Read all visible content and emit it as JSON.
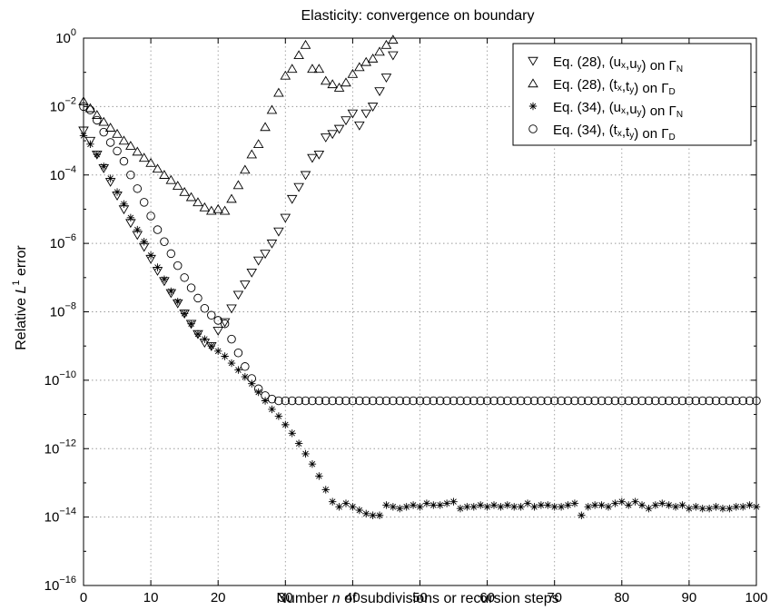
{
  "chart_data": {
    "type": "scatter",
    "title": "Elasticity: convergence on boundary",
    "xlabel": "Number n of subdivisions or recursion steps",
    "ylabel": "Relative L^1 error",
    "xlim": [
      0,
      100
    ],
    "ylim_exp": [
      -16,
      0
    ],
    "yscale": "log",
    "grid": true,
    "legend_position": "top-right",
    "x_ticks": [
      "0",
      "10",
      "20",
      "30",
      "40",
      "50",
      "60",
      "70",
      "80",
      "90",
      "100"
    ],
    "y_tick_exponents": [
      "0",
      "-2",
      "-4",
      "-6",
      "-8",
      "-10",
      "-12",
      "-14",
      "-16"
    ],
    "series": [
      {
        "name": "Eq. (28), (u_x,u_y) on Γ_N",
        "marker": "triangle-down",
        "x": [
          0,
          1,
          2,
          3,
          4,
          5,
          6,
          7,
          8,
          9,
          10,
          11,
          12,
          13,
          14,
          15,
          16,
          17,
          18,
          19,
          20,
          21,
          22,
          23,
          24,
          25,
          26,
          27,
          28,
          29,
          30,
          31,
          32,
          33,
          34,
          35,
          36,
          37,
          38,
          39,
          40,
          41,
          42,
          43,
          44,
          45,
          46
        ],
        "log10y": [
          -2.7,
          -3.0,
          -3.4,
          -3.8,
          -4.2,
          -4.6,
          -5.0,
          -5.4,
          -5.75,
          -6.1,
          -6.45,
          -6.8,
          -7.1,
          -7.45,
          -7.75,
          -8.05,
          -8.35,
          -8.65,
          -8.9,
          -9.0,
          -8.55,
          -8.3,
          -7.9,
          -7.5,
          -7.2,
          -6.85,
          -6.5,
          -6.3,
          -6.0,
          -5.65,
          -5.25,
          -4.7,
          -4.35,
          -4.0,
          -3.5,
          -3.4,
          -2.9,
          -2.8,
          -2.65,
          -2.4,
          -2.2,
          -2.55,
          -2.2,
          -2.0,
          -1.55,
          -1.15,
          -0.5
        ]
      },
      {
        "name": "Eq. (28), (t_x,t_y) on Γ_D",
        "marker": "triangle-up",
        "x": [
          0,
          1,
          2,
          3,
          4,
          5,
          6,
          7,
          8,
          9,
          10,
          11,
          12,
          13,
          14,
          15,
          16,
          17,
          18,
          19,
          20,
          21,
          22,
          23,
          24,
          25,
          26,
          27,
          28,
          29,
          30,
          31,
          32,
          33,
          34,
          35,
          36,
          37,
          38,
          39,
          40,
          41,
          42,
          43,
          44,
          45,
          46
        ],
        "log10y": [
          -1.85,
          -2.05,
          -2.25,
          -2.45,
          -2.62,
          -2.8,
          -3.0,
          -3.15,
          -3.32,
          -3.5,
          -3.65,
          -3.82,
          -4.0,
          -4.15,
          -4.32,
          -4.5,
          -4.65,
          -4.8,
          -4.95,
          -5.05,
          -5.0,
          -5.05,
          -4.7,
          -4.3,
          -3.85,
          -3.4,
          -3.1,
          -2.6,
          -2.1,
          -1.6,
          -1.1,
          -0.9,
          -0.5,
          -0.2,
          -0.9,
          -0.9,
          -1.25,
          -1.35,
          -1.45,
          -1.3,
          -1.05,
          -0.85,
          -0.7,
          -0.6,
          -0.4,
          -0.2,
          -0.05
        ]
      },
      {
        "name": "Eq. (34), (u_x,u_y) on Γ_N",
        "marker": "asterisk",
        "x": [
          0,
          1,
          2,
          3,
          4,
          5,
          6,
          7,
          8,
          9,
          10,
          11,
          12,
          13,
          14,
          15,
          16,
          17,
          18,
          19,
          20,
          21,
          22,
          23,
          24,
          25,
          26,
          27,
          28,
          29,
          30,
          31,
          32,
          33,
          34,
          35,
          36,
          37,
          38,
          39,
          40,
          41,
          42,
          43,
          44,
          45,
          46,
          47,
          48,
          49,
          50,
          51,
          52,
          53,
          54,
          55,
          56,
          57,
          58,
          59,
          60,
          61,
          62,
          63,
          64,
          65,
          66,
          67,
          68,
          69,
          70,
          71,
          72,
          73,
          74,
          75,
          76,
          77,
          78,
          79,
          80,
          81,
          82,
          83,
          84,
          85,
          86,
          87,
          88,
          89,
          90,
          91,
          92,
          93,
          94,
          95,
          96,
          97,
          98,
          99,
          100
        ],
        "log10y": [
          -2.85,
          -3.1,
          -3.4,
          -3.75,
          -4.1,
          -4.5,
          -4.85,
          -5.25,
          -5.6,
          -5.95,
          -6.35,
          -6.7,
          -7.05,
          -7.4,
          -7.7,
          -8.05,
          -8.35,
          -8.65,
          -8.8,
          -9.0,
          -9.15,
          -9.3,
          -9.5,
          -9.7,
          -9.9,
          -10.1,
          -10.35,
          -10.6,
          -10.85,
          -11.05,
          -11.3,
          -11.55,
          -11.85,
          -12.15,
          -12.45,
          -12.8,
          -13.2,
          -13.55,
          -13.7,
          -13.6,
          -13.7,
          -13.8,
          -13.9,
          -13.95,
          -13.95,
          -13.65,
          -13.7,
          -13.75,
          -13.7,
          -13.65,
          -13.7,
          -13.6,
          -13.65,
          -13.65,
          -13.6,
          -13.55,
          -13.75,
          -13.7,
          -13.7,
          -13.65,
          -13.7,
          -13.65,
          -13.7,
          -13.65,
          -13.7,
          -13.7,
          -13.6,
          -13.7,
          -13.65,
          -13.65,
          -13.7,
          -13.7,
          -13.65,
          -13.6,
          -13.95,
          -13.7,
          -13.65,
          -13.65,
          -13.7,
          -13.6,
          -13.55,
          -13.65,
          -13.55,
          -13.65,
          -13.75,
          -13.65,
          -13.6,
          -13.65,
          -13.7,
          -13.65,
          -13.75,
          -13.7,
          -13.75,
          -13.75,
          -13.7,
          -13.75,
          -13.75,
          -13.7,
          -13.7,
          -13.65,
          -13.7
        ]
      },
      {
        "name": "Eq. (34), (t_x,t_y) on Γ_D",
        "marker": "circle",
        "x": [
          0,
          1,
          2,
          3,
          4,
          5,
          6,
          7,
          8,
          9,
          10,
          11,
          12,
          13,
          14,
          15,
          16,
          17,
          18,
          19,
          20,
          21,
          22,
          23,
          24,
          25,
          26,
          27,
          28,
          29,
          30,
          31,
          32,
          33,
          34,
          35,
          36,
          37,
          38,
          39,
          40,
          41,
          42,
          43,
          44,
          45,
          46,
          47,
          48,
          49,
          50,
          51,
          52,
          53,
          54,
          55,
          56,
          57,
          58,
          59,
          60,
          61,
          62,
          63,
          64,
          65,
          66,
          67,
          68,
          69,
          70,
          71,
          72,
          73,
          74,
          75,
          76,
          77,
          78,
          79,
          80,
          81,
          82,
          83,
          84,
          85,
          86,
          87,
          88,
          89,
          90,
          91,
          92,
          93,
          94,
          95,
          96,
          97,
          98,
          99,
          100
        ],
        "log10y": [
          -2.0,
          -2.1,
          -2.4,
          -2.75,
          -3.05,
          -3.3,
          -3.6,
          -4.0,
          -4.4,
          -4.8,
          -5.2,
          -5.6,
          -5.95,
          -6.3,
          -6.65,
          -7.0,
          -7.3,
          -7.6,
          -7.9,
          -8.1,
          -8.25,
          -8.35,
          -8.8,
          -9.2,
          -9.6,
          -9.95,
          -10.25,
          -10.45,
          -10.55,
          -10.6,
          -10.6,
          -10.6,
          -10.6,
          -10.6,
          -10.6,
          -10.6,
          -10.6,
          -10.6,
          -10.6,
          -10.6,
          -10.6,
          -10.6,
          -10.6,
          -10.6,
          -10.6,
          -10.6,
          -10.6,
          -10.6,
          -10.6,
          -10.6,
          -10.6,
          -10.6,
          -10.6,
          -10.6,
          -10.6,
          -10.6,
          -10.6,
          -10.6,
          -10.6,
          -10.6,
          -10.6,
          -10.6,
          -10.6,
          -10.6,
          -10.6,
          -10.6,
          -10.6,
          -10.6,
          -10.6,
          -10.6,
          -10.6,
          -10.6,
          -10.6,
          -10.6,
          -10.6,
          -10.6,
          -10.6,
          -10.6,
          -10.6,
          -10.6,
          -10.6,
          -10.6,
          -10.6,
          -10.6,
          -10.6,
          -10.6,
          -10.6,
          -10.6,
          -10.6,
          -10.6,
          -10.6,
          -10.6,
          -10.6,
          -10.6,
          -10.6,
          -10.6,
          -10.6,
          -10.6,
          -10.6,
          -10.6,
          -10.6
        ]
      }
    ],
    "legend": [
      {
        "prefix": "Eq. (28), (u",
        "s1": "x",
        "mid": ",u",
        "s2": "y",
        "suffix": ") on Γ",
        "s3": "N"
      },
      {
        "prefix": "Eq. (28), (t",
        "s1": "x",
        "mid": ",t",
        "s2": "y",
        "suffix": ") on Γ",
        "s3": "D"
      },
      {
        "prefix": "Eq. (34), (u",
        "s1": "x",
        "mid": ",u",
        "s2": "y",
        "suffix": ") on Γ",
        "s3": "N"
      },
      {
        "prefix": "Eq. (34), (t",
        "s1": "x",
        "mid": ",t",
        "s2": "y",
        "suffix": ") on Γ",
        "s3": "D"
      }
    ],
    "xlabel_parts": {
      "pre": "Number ",
      "var": "n",
      "post": " of subdivisions or recursion steps"
    },
    "ylabel_parts": {
      "pre": "Relative ",
      "var": "L",
      "sup": "1",
      "post": " error"
    }
  }
}
